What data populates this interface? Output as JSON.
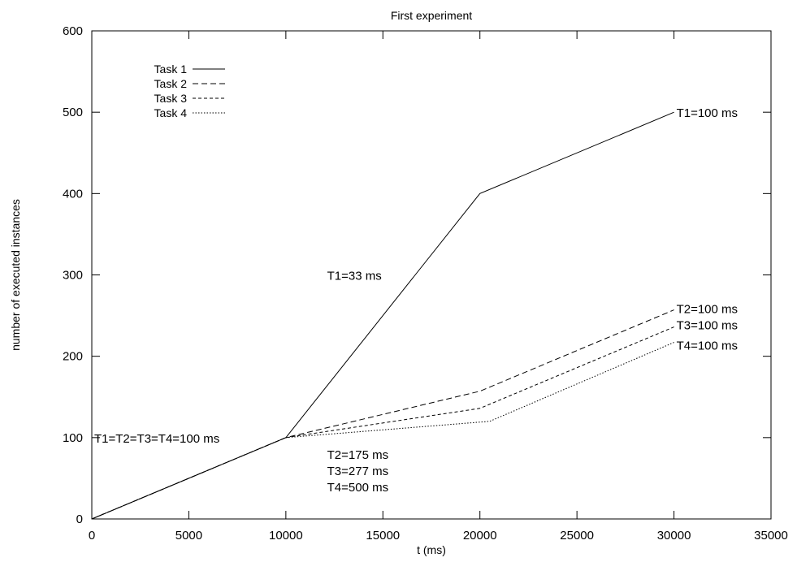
{
  "chart_data": {
    "type": "line",
    "title": "First experiment",
    "xlabel": "t (ms)",
    "ylabel": "number of executed instances",
    "xlim": [
      0,
      35000
    ],
    "ylim": [
      0,
      600
    ],
    "xticks": [
      0,
      5000,
      10000,
      15000,
      20000,
      25000,
      30000,
      35000
    ],
    "yticks": [
      0,
      100,
      200,
      300,
      400,
      500,
      600
    ],
    "grid": false,
    "legend_position": "top-left",
    "series": [
      {
        "name": "Task 1",
        "dash": "solid",
        "points": [
          [
            0,
            0
          ],
          [
            10000,
            100
          ],
          [
            20000,
            400
          ],
          [
            30000,
            500
          ]
        ]
      },
      {
        "name": "Task 2",
        "dash": "dashed",
        "points": [
          [
            0,
            0
          ],
          [
            10000,
            100
          ],
          [
            20000,
            157
          ],
          [
            30000,
            257
          ]
        ]
      },
      {
        "name": "Task 3",
        "dash": "short-dashed",
        "points": [
          [
            0,
            0
          ],
          [
            10000,
            100
          ],
          [
            20000,
            136
          ],
          [
            30000,
            236
          ]
        ]
      },
      {
        "name": "Task 4",
        "dash": "dotted",
        "points": [
          [
            0,
            0
          ],
          [
            10000,
            100
          ],
          [
            20500,
            120
          ],
          [
            30000,
            217
          ]
        ]
      }
    ],
    "annotations": [
      {
        "text": "T1=T2=T3=T4=100 ms",
        "x": 0,
        "y": 100
      },
      {
        "text": "T1=33 ms",
        "x": 12000,
        "y": 300
      },
      {
        "text": "T2=175 ms",
        "x": 12000,
        "y": 80
      },
      {
        "text": "T3=277 ms",
        "x": 12000,
        "y": 60
      },
      {
        "text": "T4=500 ms",
        "x": 12000,
        "y": 40
      },
      {
        "text": "T1=100 ms",
        "x": 30000,
        "y": 500
      },
      {
        "text": "T2=100 ms",
        "x": 30000,
        "y": 259
      },
      {
        "text": "T3=100 ms",
        "x": 30000,
        "y": 239
      },
      {
        "text": "T4=100 ms",
        "x": 30000,
        "y": 214
      }
    ]
  }
}
